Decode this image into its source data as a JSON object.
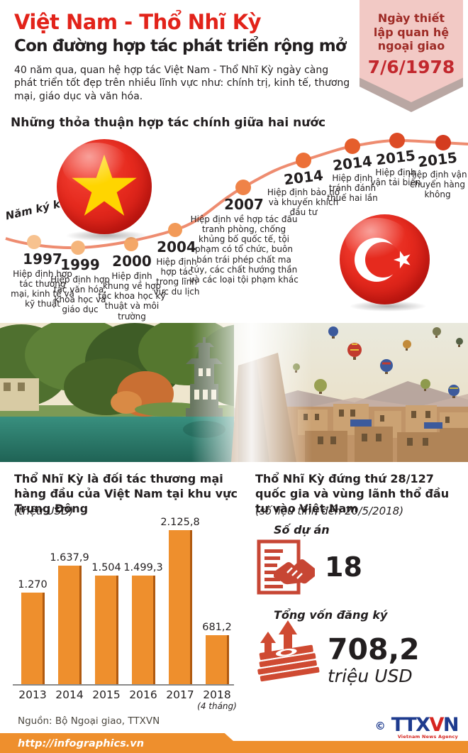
{
  "header": {
    "title": "Việt Nam - Thổ Nhĩ Kỳ",
    "subtitle": "Con đường hợp tác phát triển rộng mở",
    "description": "40 năm qua, quan hệ hợp tác Việt Nam - Thổ Nhĩ Kỳ ngày càng phát triển tốt đẹp trên nhiều lĩnh vực như: chính trị, kinh tế, thương mại, giáo dục và văn hóa.",
    "ribbon": {
      "label": "Ngày thiết lập quan hệ ngoại giao",
      "date": "7/6/1978"
    }
  },
  "timeline": {
    "heading": "Những thỏa thuận hợp tác chính giữa hai nước",
    "axis_label": "Năm ký kết",
    "events": [
      {
        "year": "1997",
        "text": "Hiệp định hợp tác thương mại, kinh tế và kỹ thuật"
      },
      {
        "year": "1999",
        "text": "Hiệp định hợp tác văn hóa, khoa học và giáo dục"
      },
      {
        "year": "2000",
        "text": "Hiệp định khung về hợp tác khoa học kỹ thuật và môi trường"
      },
      {
        "year": "2004",
        "text": "Hiệp định hợp tác trong lĩnh vực du lịch"
      },
      {
        "year": "2007",
        "text": "Hiệp định về hợp tác đấu tranh phòng, chống khủng bố quốc tế, tội phạm có tổ chức, buôn bán trái phép chất ma túy, các chất hướng thần và các loại tội phạm khác"
      },
      {
        "year": "2014",
        "text": "Hiệp định bảo hộ và khuyến khích đầu tư"
      },
      {
        "year": "2014",
        "text": "Hiệp định tránh đánh thuế hai lần"
      },
      {
        "year": "2015",
        "text": "Hiệp định vận tải biển"
      },
      {
        "year": "2015",
        "text": "Hiệp định vận chuyển hàng không"
      }
    ]
  },
  "chart_data": {
    "type": "bar",
    "title": "Thổ Nhĩ Kỳ là đối tác thương mại hàng đầu của Việt Nam tại khu vực Trung Đông",
    "unit_label": "(triệu USD)",
    "categories": [
      "2013",
      "2014",
      "2015",
      "2016",
      "2017",
      "2018"
    ],
    "values": [
      1270,
      1637.9,
      1504,
      1499.3,
      2125.8,
      681.2
    ],
    "value_labels": [
      "1.270",
      "1.637,9",
      "1.504",
      "1.499,3",
      "2.125,8",
      "681,2"
    ],
    "last_category_note": "(4 tháng)",
    "bar_color": "#ee8f2d",
    "ylim": [
      0,
      2300
    ],
    "grid": false,
    "legend": "none"
  },
  "investment": {
    "title": "Thổ Nhĩ Kỳ đứng thứ 28/127 quốc gia và vùng lãnh thổ đầu tư vào Việt Nam",
    "note": "(số liệu tính đến 20/5/2018)",
    "projects_label": "Số dự án",
    "projects_value": "18",
    "capital_label": "Tổng vốn đăng ký",
    "capital_value": "708,2",
    "capital_unit": "triệu USD"
  },
  "footer": {
    "source": "Nguồn: Bộ Ngoại giao, TTXVN",
    "url": "http://infographics.vn",
    "copyright": "©",
    "logo": "TTXVN",
    "logo_sub": "Vietnam News Agency"
  },
  "colors": {
    "title_red": "#e2231a",
    "ribbon_pink": "#f2c9c5",
    "ribbon_text": "#9e2b26",
    "ribbon_date": "#c2272d",
    "curve": "#ee8c70",
    "bar_orange": "#ee8f2d",
    "icon_red": "#c74634",
    "logo_blue": "#1e3b8e",
    "logo_red": "#d6251f"
  }
}
